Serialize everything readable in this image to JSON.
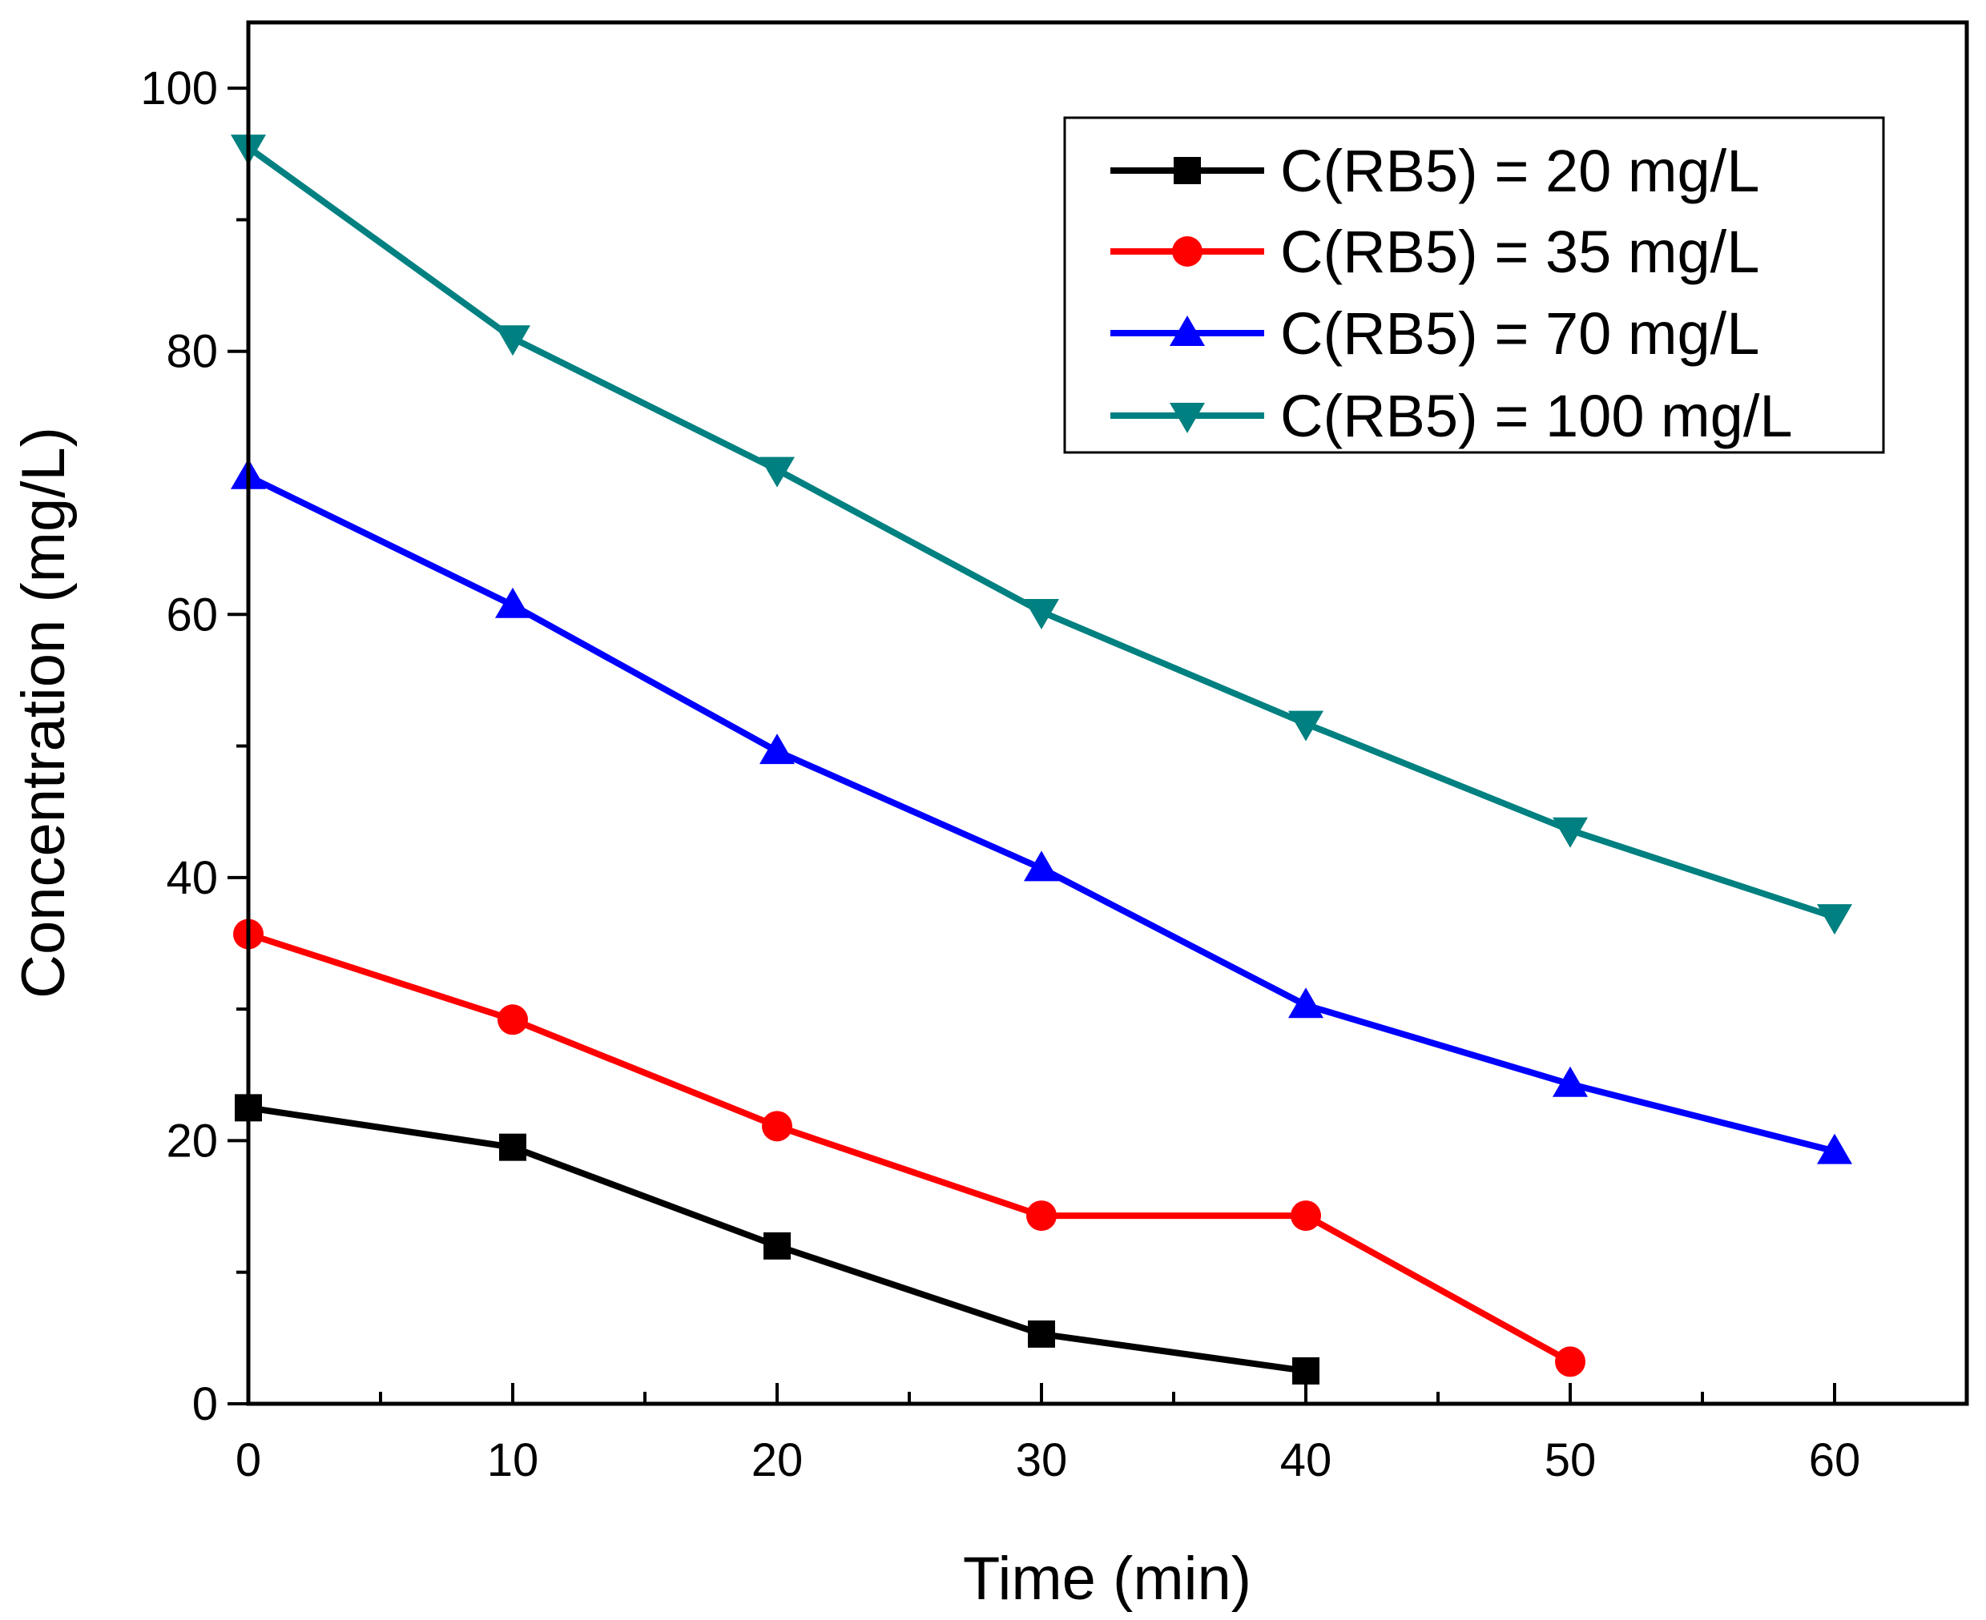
{
  "chart_data": {
    "type": "line",
    "xlabel": "Time (min)",
    "ylabel": "Concentration (mg/L)",
    "xlim": [
      0,
      65
    ],
    "ylim": [
      0,
      105
    ],
    "x_ticks": [
      "0",
      "10",
      "20",
      "30",
      "40",
      "50",
      "60"
    ],
    "y_ticks": [
      "0",
      "20",
      "40",
      "60",
      "80",
      "100"
    ],
    "grid": false,
    "legend_position": "top-right",
    "series": [
      {
        "name": "C(RB5) = 20 mg/L",
        "color": "#000000",
        "marker": "square",
        "x": [
          0,
          10,
          20,
          30,
          40
        ],
        "y": [
          22.5,
          19.5,
          12.0,
          5.3,
          2.5
        ]
      },
      {
        "name": "C(RB5) = 35 mg/L",
        "color": "#ff0000",
        "marker": "circle",
        "x": [
          0,
          10,
          20,
          30,
          40,
          50
        ],
        "y": [
          35.7,
          29.2,
          21.1,
          14.3,
          14.3,
          3.2
        ]
      },
      {
        "name": "C(RB5) = 70 mg/L",
        "color": "#0000ff",
        "marker": "triangle-up",
        "x": [
          0,
          10,
          20,
          30,
          40,
          50,
          60
        ],
        "y": [
          70.5,
          60.7,
          49.6,
          40.7,
          30.3,
          24.3,
          19.2
        ]
      },
      {
        "name": "C(RB5) = 100 mg/L",
        "color": "#008080",
        "marker": "triangle-down",
        "x": [
          0,
          10,
          20,
          30,
          40,
          50,
          60
        ],
        "y": [
          95.5,
          81.0,
          71.0,
          60.2,
          51.7,
          43.6,
          37.0
        ]
      }
    ]
  }
}
